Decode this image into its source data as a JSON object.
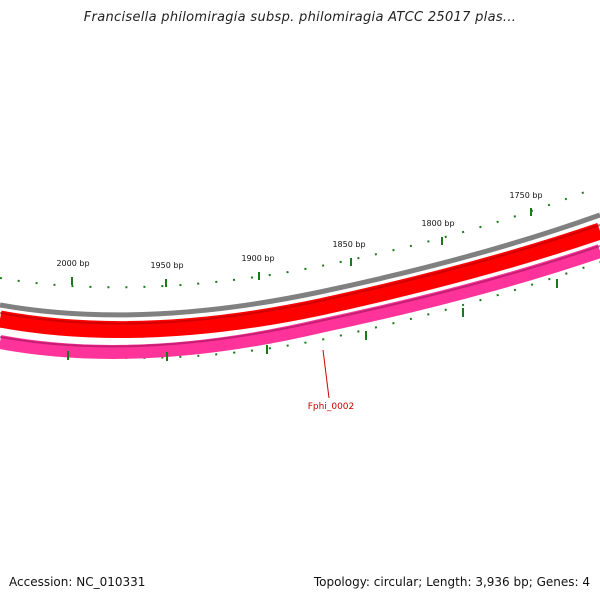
{
  "title": "Francisella philomiragia subsp. philomiragia ATCC 25017 plas...",
  "footer": {
    "accession": "Accession: NC_010331",
    "summary": "Topology: circular; Length: 3,936 bp; Genes: 4"
  },
  "ticks": [
    {
      "label": "2000 bp"
    },
    {
      "label": "1950 bp"
    },
    {
      "label": "1900 bp"
    },
    {
      "label": "1850 bp"
    },
    {
      "label": "1800 bp"
    },
    {
      "label": "1750 bp"
    }
  ],
  "genes": [
    {
      "label": "Fphi_0002"
    }
  ],
  "colors": {
    "backbone": "#808080",
    "cds_forward": "#ff0000",
    "cds_reverse": "#ff3399",
    "tick": "#1a7a1a",
    "gene_label": "#cc0000"
  }
}
